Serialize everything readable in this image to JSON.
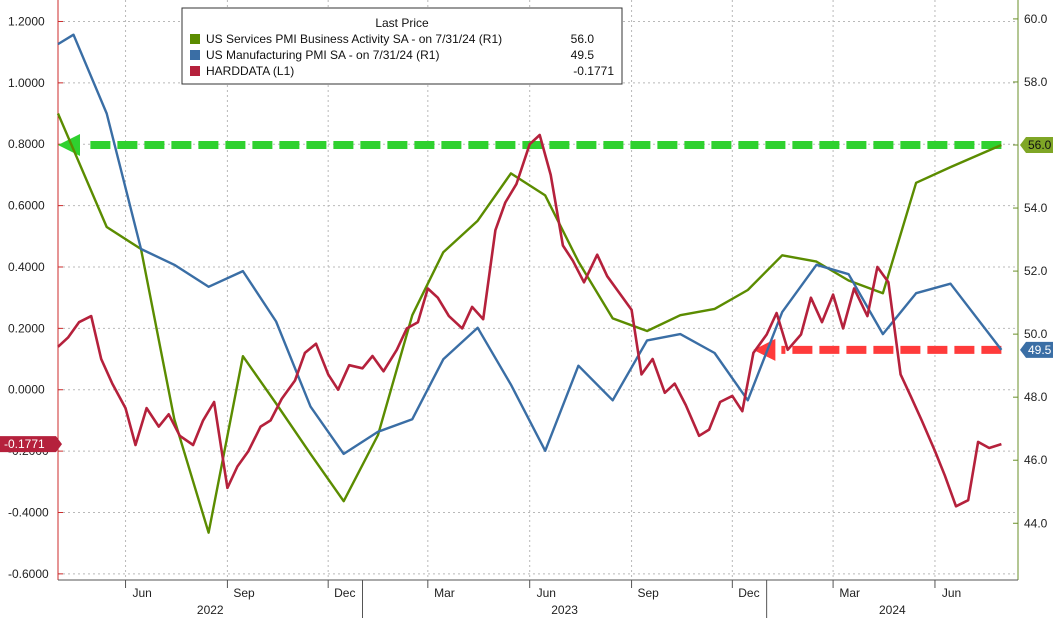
{
  "chart_data": {
    "type": "line",
    "legend": {
      "title": "Last Price",
      "placement": "top-center",
      "entries": [
        {
          "label": "US Services PMI Business Activity SA -  on 7/31/24  (R1)",
          "value": "56.0",
          "color": "#5b8c00"
        },
        {
          "label": "US Manufacturing PMI SA -  on 7/31/24  (R1)",
          "value": "49.5",
          "color": "#3a6ea5"
        },
        {
          "label": "HARDDATA  (L1)",
          "value": "-0.1771",
          "color": "#b5213c"
        }
      ]
    },
    "x_axis": {
      "months": [
        "Jun",
        "Sep",
        "Dec",
        "Mar",
        "Jun",
        "Sep",
        "Dec",
        "Mar",
        "Jun"
      ],
      "years": [
        "2022",
        "2023",
        "2024"
      ],
      "range": [
        "2022-04-01",
        "2024-08-15"
      ]
    },
    "y_left": {
      "range": [
        -0.62,
        1.27
      ],
      "ticks": [
        "1.2000",
        "1.0000",
        "0.8000",
        "0.6000",
        "0.4000",
        "0.2000",
        "0.0000",
        "-0.2000",
        "-0.4000",
        "-0.6000"
      ]
    },
    "y_right": {
      "range": [
        42.2,
        60.6
      ],
      "ticks": [
        "60.0",
        "58.0",
        "56.0",
        "54.0",
        "52.0",
        "50.0",
        "48.0",
        "46.0",
        "44.0"
      ]
    },
    "grid": true,
    "badges": {
      "services": "56.0",
      "manufacturing": "49.5",
      "harddata": "-0.1771"
    },
    "series": [
      {
        "name": "US Services PMI Business Activity SA",
        "axis": "right",
        "color": "#5b8c00",
        "points": [
          [
            "2022-04-01",
            57.0
          ],
          [
            "2022-05-15",
            53.4
          ],
          [
            "2022-06-15",
            52.7
          ],
          [
            "2022-07-15",
            47.3
          ],
          [
            "2022-08-15",
            43.7
          ],
          [
            "2022-09-15",
            49.3
          ],
          [
            "2022-10-15",
            47.8
          ],
          [
            "2022-11-15",
            46.2
          ],
          [
            "2022-12-15",
            44.7
          ],
          [
            "2023-01-15",
            46.8
          ],
          [
            "2023-02-15",
            50.6
          ],
          [
            "2023-03-15",
            52.6
          ],
          [
            "2023-04-15",
            53.6
          ],
          [
            "2023-05-15",
            55.1
          ],
          [
            "2023-06-15",
            54.4
          ],
          [
            "2023-07-15",
            52.3
          ],
          [
            "2023-08-15",
            50.5
          ],
          [
            "2023-09-15",
            50.1
          ],
          [
            "2023-10-15",
            50.6
          ],
          [
            "2023-11-15",
            50.8
          ],
          [
            "2023-12-15",
            51.4
          ],
          [
            "2024-01-15",
            52.5
          ],
          [
            "2024-02-15",
            52.3
          ],
          [
            "2024-03-15",
            51.7
          ],
          [
            "2024-04-15",
            51.3
          ],
          [
            "2024-05-15",
            54.8
          ],
          [
            "2024-06-15",
            55.3
          ],
          [
            "2024-07-31",
            56.0
          ]
        ]
      },
      {
        "name": "US Manufacturing PMI SA",
        "axis": "right",
        "color": "#3a6ea5",
        "points": [
          [
            "2022-04-01",
            59.2
          ],
          [
            "2022-04-15",
            59.5
          ],
          [
            "2022-05-15",
            57.0
          ],
          [
            "2022-06-15",
            52.7
          ],
          [
            "2022-07-15",
            52.2
          ],
          [
            "2022-08-15",
            51.5
          ],
          [
            "2022-09-15",
            52.0
          ],
          [
            "2022-10-15",
            50.4
          ],
          [
            "2022-11-15",
            47.7
          ],
          [
            "2022-12-15",
            46.2
          ],
          [
            "2023-01-15",
            46.9
          ],
          [
            "2023-02-15",
            47.3
          ],
          [
            "2023-03-15",
            49.2
          ],
          [
            "2023-04-15",
            50.2
          ],
          [
            "2023-05-15",
            48.4
          ],
          [
            "2023-06-15",
            46.3
          ],
          [
            "2023-07-15",
            49.0
          ],
          [
            "2023-08-15",
            47.9
          ],
          [
            "2023-09-15",
            49.8
          ],
          [
            "2023-10-15",
            50.0
          ],
          [
            "2023-11-15",
            49.4
          ],
          [
            "2023-12-15",
            47.9
          ],
          [
            "2024-01-15",
            50.7
          ],
          [
            "2024-02-15",
            52.2
          ],
          [
            "2024-03-15",
            51.9
          ],
          [
            "2024-04-15",
            50.0
          ],
          [
            "2024-05-15",
            51.3
          ],
          [
            "2024-06-15",
            51.6
          ],
          [
            "2024-07-31",
            49.5
          ]
        ]
      },
      {
        "name": "HARDDATA",
        "axis": "left",
        "color": "#b5213c",
        "points": [
          [
            "2022-04-01",
            0.14
          ],
          [
            "2022-04-10",
            0.17
          ],
          [
            "2022-04-20",
            0.22
          ],
          [
            "2022-05-01",
            0.24
          ],
          [
            "2022-05-10",
            0.1
          ],
          [
            "2022-05-20",
            0.02
          ],
          [
            "2022-06-01",
            -0.06
          ],
          [
            "2022-06-10",
            -0.18
          ],
          [
            "2022-06-20",
            -0.06
          ],
          [
            "2022-07-01",
            -0.12
          ],
          [
            "2022-07-10",
            -0.08
          ],
          [
            "2022-07-20",
            -0.15
          ],
          [
            "2022-08-01",
            -0.18
          ],
          [
            "2022-08-10",
            -0.1
          ],
          [
            "2022-08-20",
            -0.04
          ],
          [
            "2022-09-01",
            -0.32
          ],
          [
            "2022-09-10",
            -0.25
          ],
          [
            "2022-09-20",
            -0.2
          ],
          [
            "2022-10-01",
            -0.12
          ],
          [
            "2022-10-10",
            -0.1
          ],
          [
            "2022-10-20",
            -0.03
          ],
          [
            "2022-11-01",
            0.03
          ],
          [
            "2022-11-10",
            0.12
          ],
          [
            "2022-11-20",
            0.15
          ],
          [
            "2022-12-01",
            0.05
          ],
          [
            "2022-12-10",
            0.0
          ],
          [
            "2022-12-20",
            0.08
          ],
          [
            "2023-01-01",
            0.07
          ],
          [
            "2023-01-10",
            0.11
          ],
          [
            "2023-01-20",
            0.06
          ],
          [
            "2023-02-01",
            0.13
          ],
          [
            "2023-02-10",
            0.2
          ],
          [
            "2023-02-20",
            0.22
          ],
          [
            "2023-03-01",
            0.33
          ],
          [
            "2023-03-10",
            0.3
          ],
          [
            "2023-03-20",
            0.24
          ],
          [
            "2023-04-01",
            0.2
          ],
          [
            "2023-04-10",
            0.27
          ],
          [
            "2023-04-20",
            0.23
          ],
          [
            "2023-05-01",
            0.52
          ],
          [
            "2023-05-10",
            0.61
          ],
          [
            "2023-05-20",
            0.67
          ],
          [
            "2023-06-01",
            0.8
          ],
          [
            "2023-06-10",
            0.83
          ],
          [
            "2023-06-20",
            0.7
          ],
          [
            "2023-07-01",
            0.47
          ],
          [
            "2023-07-10",
            0.42
          ],
          [
            "2023-07-20",
            0.35
          ],
          [
            "2023-08-01",
            0.44
          ],
          [
            "2023-08-10",
            0.37
          ],
          [
            "2023-08-20",
            0.32
          ],
          [
            "2023-09-01",
            0.26
          ],
          [
            "2023-09-10",
            0.05
          ],
          [
            "2023-09-20",
            0.1
          ],
          [
            "2023-10-01",
            -0.01
          ],
          [
            "2023-10-10",
            0.02
          ],
          [
            "2023-10-20",
            -0.05
          ],
          [
            "2023-11-01",
            -0.15
          ],
          [
            "2023-11-10",
            -0.13
          ],
          [
            "2023-11-20",
            -0.04
          ],
          [
            "2023-12-01",
            -0.02
          ],
          [
            "2023-12-10",
            -0.07
          ],
          [
            "2023-12-20",
            0.12
          ],
          [
            "2024-01-01",
            0.18
          ],
          [
            "2024-01-10",
            0.25
          ],
          [
            "2024-01-20",
            0.13
          ],
          [
            "2024-02-01",
            0.18
          ],
          [
            "2024-02-10",
            0.3
          ],
          [
            "2024-02-20",
            0.22
          ],
          [
            "2024-03-01",
            0.31
          ],
          [
            "2024-03-10",
            0.2
          ],
          [
            "2024-03-20",
            0.33
          ],
          [
            "2024-04-01",
            0.24
          ],
          [
            "2024-04-10",
            0.4
          ],
          [
            "2024-04-20",
            0.35
          ],
          [
            "2024-05-01",
            0.05
          ],
          [
            "2024-05-10",
            -0.02
          ],
          [
            "2024-05-20",
            -0.1
          ],
          [
            "2024-06-01",
            -0.2
          ],
          [
            "2024-06-10",
            -0.28
          ],
          [
            "2024-06-20",
            -0.38
          ],
          [
            "2024-07-01",
            -0.36
          ],
          [
            "2024-07-10",
            -0.17
          ],
          [
            "2024-07-20",
            -0.19
          ],
          [
            "2024-07-31",
            -0.1771
          ]
        ]
      }
    ],
    "annotations": [
      {
        "type": "dashed-arrow",
        "color": "#2fd12f",
        "axis": "right",
        "level": 56.0,
        "from": "2024-07-31",
        "to": "2022-04-01"
      },
      {
        "type": "dashed-arrow",
        "color": "#ff3b3b",
        "axis": "right",
        "level": 49.5,
        "from": "2024-07-31",
        "to": "2023-12-20"
      }
    ]
  }
}
